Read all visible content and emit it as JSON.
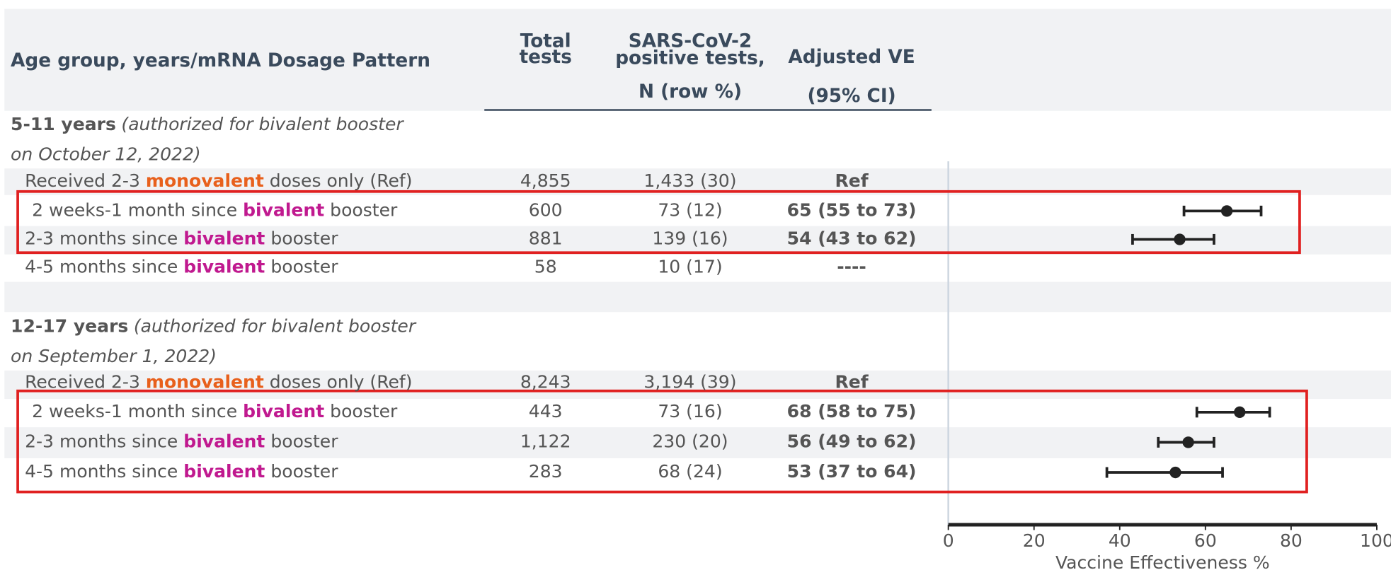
{
  "header": {
    "col0": "Age group, years/mRNA Dosage Pattern",
    "col1": [
      "Total",
      "tests"
    ],
    "col2": [
      "SARS-CoV-2",
      "positive tests,",
      "N (row %)"
    ],
    "col3": [
      "Adjusted VE",
      "(95% CI)"
    ]
  },
  "groups": [
    {
      "title": "5-11 years",
      "note": [
        "(authorized for bivalent booster",
        "on October 12, 2022)"
      ],
      "rows": [
        {
          "label": {
            "before": "Received 2-3 ",
            "highlight": "monovalent",
            "after": " doses only (Ref)"
          },
          "total": "4,855",
          "positive": "1,433 (30)",
          "ve_label": "Ref"
        },
        {
          "label": {
            "before": "2 weeks-1 month since ",
            "highlight": "bivalent",
            "after": " booster"
          },
          "total": "600",
          "positive": "73 (12)",
          "ve_label": "65 (55 to 73)",
          "ve": {
            "estimate": 65,
            "low": 55,
            "high": 73
          }
        },
        {
          "label": {
            "before": "2-3 months since ",
            "highlight": "bivalent",
            "after": " booster"
          },
          "total": "881",
          "positive": "139 (16)",
          "ve_label": "54 (43 to 62)",
          "ve": {
            "estimate": 54,
            "low": 43,
            "high": 62
          }
        },
        {
          "label": {
            "before": "4-5 months since ",
            "highlight": "bivalent",
            "after": " booster"
          },
          "total": "58",
          "positive": "10 (17)",
          "ve_label": "----"
        }
      ]
    },
    {
      "title": "12-17 years",
      "note": [
        "(authorized for bivalent booster",
        "on September 1, 2022)"
      ],
      "rows": [
        {
          "label": {
            "before": "Received 2-3 ",
            "highlight": "monovalent",
            "after": " doses only (Ref)"
          },
          "total": "8,243",
          "positive": "3,194 (39)",
          "ve_label": "Ref"
        },
        {
          "label": {
            "before": "2 weeks-1 month since ",
            "highlight": "bivalent",
            "after": " booster"
          },
          "total": "443",
          "positive": "73 (16)",
          "ve_label": "68 (58 to 75)",
          "ve": {
            "estimate": 68,
            "low": 58,
            "high": 75
          }
        },
        {
          "label": {
            "before": "2-3 months since ",
            "highlight": "bivalent",
            "after": " booster"
          },
          "total": "1,122",
          "positive": "230 (20)",
          "ve_label": "56 (49 to 62)",
          "ve": {
            "estimate": 56,
            "low": 49,
            "high": 62
          }
        },
        {
          "label": {
            "before": "4-5 months since ",
            "highlight": "bivalent",
            "after": " booster"
          },
          "total": "283",
          "positive": "68 (24)",
          "ve_label": "53 (37 to 64)",
          "ve": {
            "estimate": 53,
            "low": 37,
            "high": 64
          }
        }
      ]
    }
  ],
  "axis": {
    "label": "Vaccine Effectiveness %",
    "xlim": [
      0,
      100
    ],
    "xticks": [
      0,
      20,
      40,
      60,
      80,
      100
    ]
  }
}
